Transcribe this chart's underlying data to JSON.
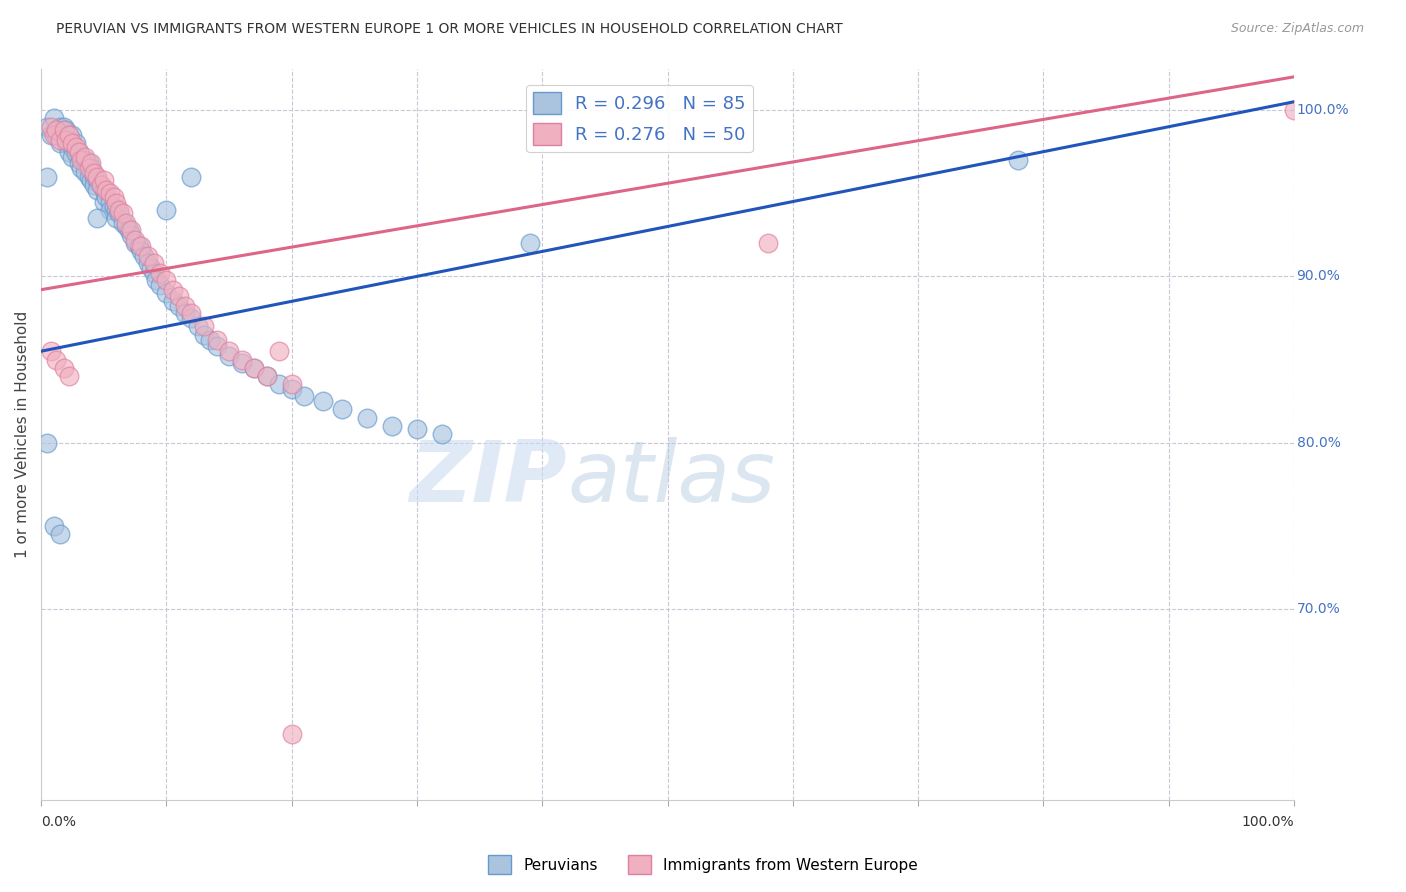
{
  "title": "PERUVIAN VS IMMIGRANTS FROM WESTERN EUROPE 1 OR MORE VEHICLES IN HOUSEHOLD CORRELATION CHART",
  "source": "Source: ZipAtlas.com",
  "ylabel": "1 or more Vehicles in Household",
  "legend_blue_label": "Peruvians",
  "legend_pink_label": "Immigrants from Western Europe",
  "R_blue": 0.296,
  "N_blue": 85,
  "R_pink": 0.276,
  "N_pink": 50,
  "blue_color": "#aac4e0",
  "pink_color": "#f0b0c0",
  "blue_line_color": "#2255bb",
  "pink_line_color": "#dd6688",
  "watermark_zip": "ZIP",
  "watermark_atlas": "atlas",
  "xlim": [
    0.0,
    1.0
  ],
  "ylim": [
    0.585,
    1.025
  ],
  "yticks": [
    0.7,
    0.8,
    0.9,
    1.0
  ],
  "xticks": [
    0.0,
    0.1,
    0.2,
    0.3,
    0.4,
    0.5,
    0.6,
    0.7,
    0.8,
    0.9,
    1.0
  ],
  "blue_x": [
    0.005,
    0.008,
    0.01,
    0.012,
    0.015,
    0.015,
    0.018,
    0.018,
    0.02,
    0.02,
    0.022,
    0.022,
    0.025,
    0.025,
    0.025,
    0.028,
    0.028,
    0.03,
    0.03,
    0.032,
    0.032,
    0.035,
    0.035,
    0.038,
    0.038,
    0.04,
    0.04,
    0.042,
    0.042,
    0.045,
    0.045,
    0.048,
    0.05,
    0.05,
    0.052,
    0.055,
    0.055,
    0.058,
    0.06,
    0.06,
    0.062,
    0.065,
    0.068,
    0.07,
    0.072,
    0.075,
    0.078,
    0.08,
    0.082,
    0.085,
    0.088,
    0.09,
    0.092,
    0.095,
    0.1,
    0.105,
    0.11,
    0.115,
    0.12,
    0.125,
    0.13,
    0.135,
    0.14,
    0.15,
    0.16,
    0.17,
    0.18,
    0.19,
    0.2,
    0.21,
    0.225,
    0.24,
    0.26,
    0.28,
    0.3,
    0.32,
    0.005,
    0.045,
    0.1,
    0.12,
    0.39,
    0.78,
    0.005,
    0.01,
    0.015
  ],
  "blue_y": [
    0.99,
    0.985,
    0.995,
    0.985,
    0.99,
    0.98,
    0.99,
    0.985,
    0.988,
    0.98,
    0.985,
    0.975,
    0.985,
    0.978,
    0.972,
    0.98,
    0.974,
    0.975,
    0.968,
    0.972,
    0.965,
    0.97,
    0.963,
    0.968,
    0.96,
    0.965,
    0.958,
    0.96,
    0.955,
    0.958,
    0.952,
    0.955,
    0.952,
    0.945,
    0.948,
    0.945,
    0.94,
    0.942,
    0.94,
    0.935,
    0.938,
    0.932,
    0.93,
    0.928,
    0.925,
    0.92,
    0.918,
    0.915,
    0.912,
    0.908,
    0.905,
    0.902,
    0.898,
    0.895,
    0.89,
    0.885,
    0.882,
    0.878,
    0.875,
    0.87,
    0.865,
    0.862,
    0.858,
    0.852,
    0.848,
    0.845,
    0.84,
    0.835,
    0.832,
    0.828,
    0.825,
    0.82,
    0.815,
    0.81,
    0.808,
    0.805,
    0.96,
    0.935,
    0.94,
    0.96,
    0.92,
    0.97,
    0.8,
    0.75,
    0.745
  ],
  "pink_x": [
    0.008,
    0.01,
    0.012,
    0.015,
    0.018,
    0.02,
    0.022,
    0.025,
    0.028,
    0.03,
    0.032,
    0.035,
    0.038,
    0.04,
    0.042,
    0.045,
    0.048,
    0.05,
    0.052,
    0.055,
    0.058,
    0.06,
    0.062,
    0.065,
    0.068,
    0.072,
    0.075,
    0.08,
    0.085,
    0.09,
    0.095,
    0.1,
    0.105,
    0.11,
    0.115,
    0.12,
    0.13,
    0.14,
    0.15,
    0.16,
    0.17,
    0.18,
    0.2,
    0.58,
    1.0,
    0.008,
    0.012,
    0.018,
    0.022,
    0.19
  ],
  "pink_y": [
    0.99,
    0.985,
    0.988,
    0.982,
    0.988,
    0.982,
    0.985,
    0.98,
    0.978,
    0.975,
    0.97,
    0.972,
    0.965,
    0.968,
    0.962,
    0.96,
    0.955,
    0.958,
    0.952,
    0.95,
    0.948,
    0.944,
    0.94,
    0.938,
    0.932,
    0.928,
    0.922,
    0.918,
    0.912,
    0.908,
    0.902,
    0.898,
    0.892,
    0.888,
    0.882,
    0.878,
    0.87,
    0.862,
    0.855,
    0.85,
    0.845,
    0.84,
    0.835,
    0.92,
    1.0,
    0.855,
    0.85,
    0.845,
    0.84,
    0.855
  ],
  "pink_outlier_x": [
    0.2
  ],
  "pink_outlier_y": [
    0.625
  ]
}
